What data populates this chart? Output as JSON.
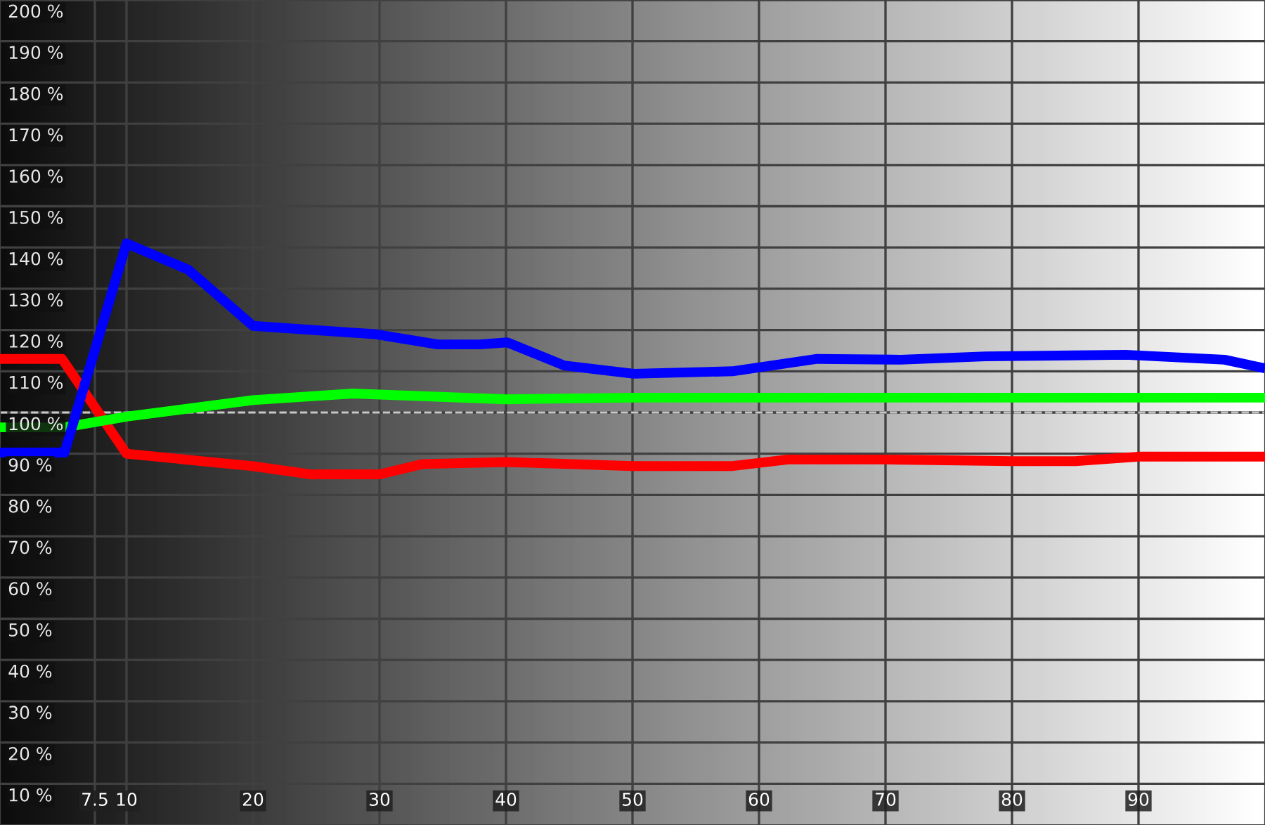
{
  "chart_data": {
    "type": "line",
    "xlim": [
      0,
      100
    ],
    "ylim": [
      0,
      200
    ],
    "xticks": [
      {
        "value": 7.5,
        "label": "7.5"
      },
      10,
      20,
      30,
      40,
      50,
      60,
      70,
      80,
      90
    ],
    "yticks": [
      {
        "value": 10,
        "label": "10 %"
      },
      {
        "value": 20,
        "label": "20 %"
      },
      {
        "value": 30,
        "label": "30 %"
      },
      {
        "value": 40,
        "label": "40 %"
      },
      {
        "value": 50,
        "label": "50 %"
      },
      {
        "value": 60,
        "label": "60 %"
      },
      {
        "value": 70,
        "label": "70 %"
      },
      {
        "value": 80,
        "label": "80 %"
      },
      {
        "value": 90,
        "label": "90 %"
      },
      {
        "value": 100,
        "label": "100 %"
      },
      {
        "value": 110,
        "label": "110 %"
      },
      {
        "value": 120,
        "label": "120 %"
      },
      {
        "value": 130,
        "label": "130 %"
      },
      {
        "value": 140,
        "label": "140 %"
      },
      {
        "value": 150,
        "label": "150 %"
      },
      {
        "value": 160,
        "label": "160 %"
      },
      {
        "value": 170,
        "label": "170 %"
      },
      {
        "value": 180,
        "label": "180 %"
      },
      {
        "value": 190,
        "label": "190 %"
      },
      {
        "value": 200,
        "label": "200 %"
      }
    ],
    "grid": true,
    "marker": "none",
    "line_style": "solid",
    "ref_lines": [
      {
        "axis": "y",
        "value": 100,
        "line_style": "dashed",
        "color": "#c8c8c8"
      }
    ],
    "series": [
      {
        "color": "#ff0000",
        "x": [
          0,
          4.9,
          10,
          20,
          24.6,
          30,
          33.4,
          40,
          50,
          57.8,
          62.3,
          70,
          80,
          85,
          90,
          100
        ],
        "values": [
          113,
          113,
          90,
          87,
          85,
          85,
          87.5,
          88,
          87,
          87,
          88.6,
          88.6,
          88.2,
          88.2,
          89.3,
          89.3
        ]
      },
      {
        "color": "#00ff00",
        "x": [
          0,
          5.1,
          10,
          20,
          27.9,
          40,
          50,
          100
        ],
        "values": [
          96.4,
          96.4,
          99,
          103,
          104.6,
          103.2,
          103.6,
          103.6
        ]
      },
      {
        "color": "#0000ff",
        "x": [
          0,
          5.1,
          10,
          14.9,
          20,
          29.6,
          34.6,
          37.9,
          40.1,
          44.6,
          50.1,
          57.9,
          64.6,
          71.2,
          77.9,
          89,
          96.8,
          100
        ],
        "values": [
          90.3,
          90.3,
          141,
          134.6,
          121,
          119,
          116.5,
          116.5,
          117,
          111.4,
          109.4,
          110,
          113,
          112.8,
          113.6,
          114,
          112.8,
          110.7
        ]
      }
    ]
  }
}
